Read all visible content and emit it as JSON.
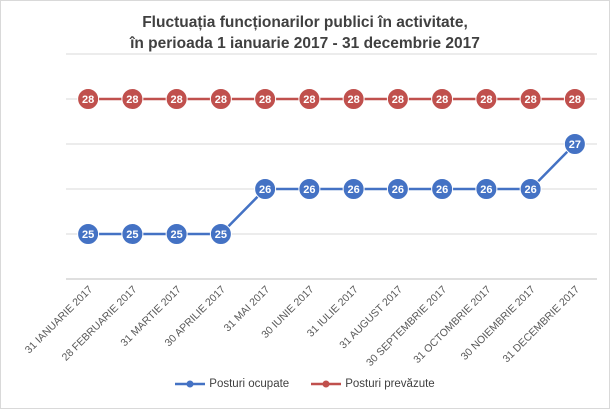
{
  "chart_data": {
    "type": "line",
    "title_line1": "Fluctuația funcționarilor publici în activitate,",
    "title_line2": "în perioada 1 ianuarie 2017 - 31 decembrie 2017",
    "categories": [
      "31 IANUARIE 2017",
      "28 FEBRUARIE 2017",
      "31 MARTIE 2017",
      "30 APRILIE 2017",
      "31 MAI 2017",
      "30 IUNIE 2017",
      "31 IULIE 2017",
      "31 AUGUST 2017",
      "30 SEPTEMBRIE 2017",
      "31 OCTOMBRIE 2017",
      "30 NOIEMBRIE 2017",
      "31 DECEMBRIE 2017"
    ],
    "series": [
      {
        "name": "Posturi ocupate",
        "color": "#4472c4",
        "values": [
          25,
          25,
          25,
          25,
          26,
          26,
          26,
          26,
          26,
          26,
          26,
          27
        ]
      },
      {
        "name": "Posturi prevăzute",
        "color": "#c0504d",
        "values": [
          28,
          28,
          28,
          28,
          28,
          28,
          28,
          28,
          28,
          28,
          28,
          28
        ]
      }
    ],
    "ylim": [
      24,
      29
    ],
    "grid": true,
    "legend_position": "bottom",
    "data_labels": true
  }
}
